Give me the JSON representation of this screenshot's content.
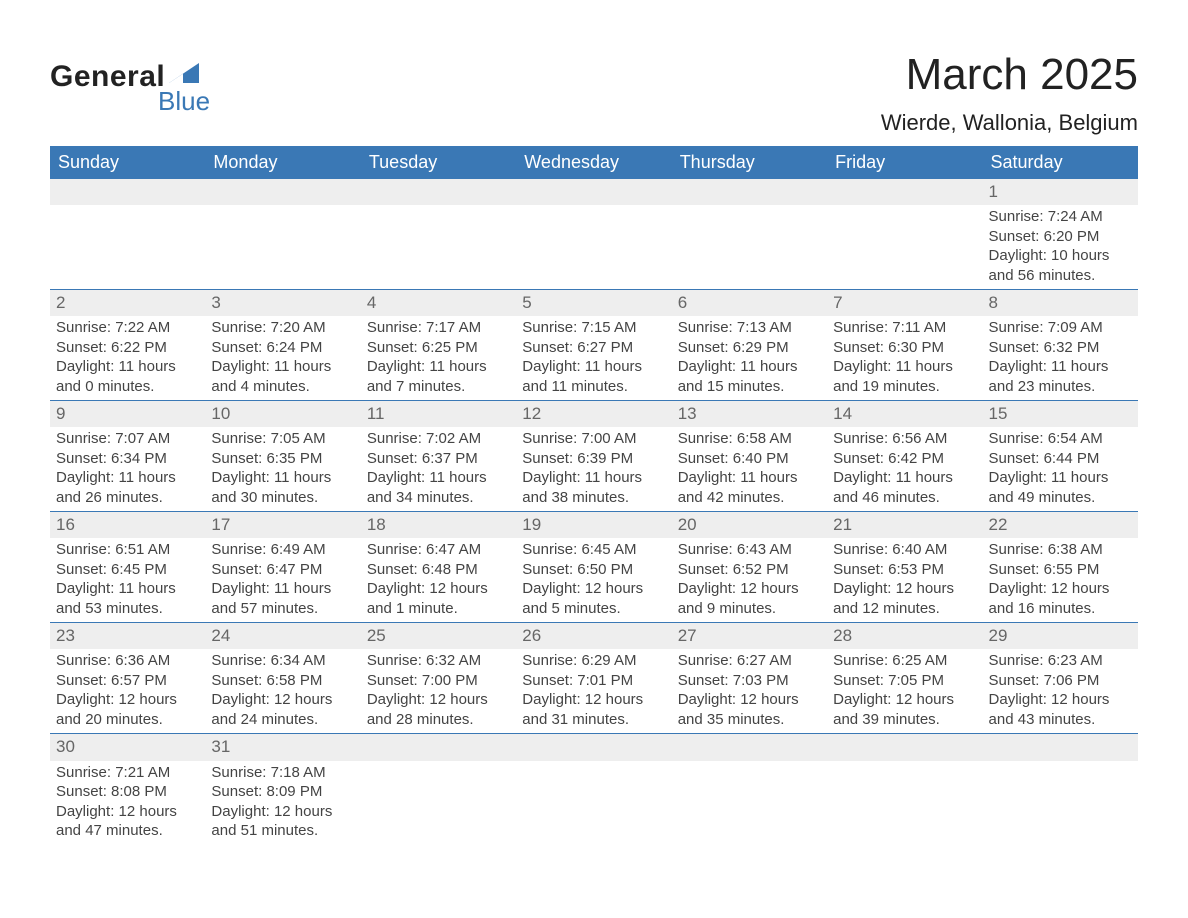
{
  "brand": {
    "name_main": "General",
    "name_sub": "Blue",
    "primary_color": "#3a78b5"
  },
  "title": "March 2025",
  "location": "Wierde, Wallonia, Belgium",
  "day_headers": [
    "Sunday",
    "Monday",
    "Tuesday",
    "Wednesday",
    "Thursday",
    "Friday",
    "Saturday"
  ],
  "colors": {
    "header_bg": "#3a78b5",
    "header_text": "#ffffff",
    "daynum_bg": "#eeeeee",
    "daynum_text": "#666666",
    "body_text": "#444444",
    "rule": "#3a78b5",
    "page_bg": "#ffffff"
  },
  "typography": {
    "title_fontsize": 44,
    "location_fontsize": 22,
    "header_fontsize": 18,
    "daynum_fontsize": 17,
    "cell_fontsize": 15
  },
  "grid": {
    "columns": 7,
    "rows": 6,
    "start_day_index": 6
  },
  "days": [
    {
      "n": 1,
      "sunrise": "7:24 AM",
      "sunset": "6:20 PM",
      "daylight": "10 hours and 56 minutes."
    },
    {
      "n": 2,
      "sunrise": "7:22 AM",
      "sunset": "6:22 PM",
      "daylight": "11 hours and 0 minutes."
    },
    {
      "n": 3,
      "sunrise": "7:20 AM",
      "sunset": "6:24 PM",
      "daylight": "11 hours and 4 minutes."
    },
    {
      "n": 4,
      "sunrise": "7:17 AM",
      "sunset": "6:25 PM",
      "daylight": "11 hours and 7 minutes."
    },
    {
      "n": 5,
      "sunrise": "7:15 AM",
      "sunset": "6:27 PM",
      "daylight": "11 hours and 11 minutes."
    },
    {
      "n": 6,
      "sunrise": "7:13 AM",
      "sunset": "6:29 PM",
      "daylight": "11 hours and 15 minutes."
    },
    {
      "n": 7,
      "sunrise": "7:11 AM",
      "sunset": "6:30 PM",
      "daylight": "11 hours and 19 minutes."
    },
    {
      "n": 8,
      "sunrise": "7:09 AM",
      "sunset": "6:32 PM",
      "daylight": "11 hours and 23 minutes."
    },
    {
      "n": 9,
      "sunrise": "7:07 AM",
      "sunset": "6:34 PM",
      "daylight": "11 hours and 26 minutes."
    },
    {
      "n": 10,
      "sunrise": "7:05 AM",
      "sunset": "6:35 PM",
      "daylight": "11 hours and 30 minutes."
    },
    {
      "n": 11,
      "sunrise": "7:02 AM",
      "sunset": "6:37 PM",
      "daylight": "11 hours and 34 minutes."
    },
    {
      "n": 12,
      "sunrise": "7:00 AM",
      "sunset": "6:39 PM",
      "daylight": "11 hours and 38 minutes."
    },
    {
      "n": 13,
      "sunrise": "6:58 AM",
      "sunset": "6:40 PM",
      "daylight": "11 hours and 42 minutes."
    },
    {
      "n": 14,
      "sunrise": "6:56 AM",
      "sunset": "6:42 PM",
      "daylight": "11 hours and 46 minutes."
    },
    {
      "n": 15,
      "sunrise": "6:54 AM",
      "sunset": "6:44 PM",
      "daylight": "11 hours and 49 minutes."
    },
    {
      "n": 16,
      "sunrise": "6:51 AM",
      "sunset": "6:45 PM",
      "daylight": "11 hours and 53 minutes."
    },
    {
      "n": 17,
      "sunrise": "6:49 AM",
      "sunset": "6:47 PM",
      "daylight": "11 hours and 57 minutes."
    },
    {
      "n": 18,
      "sunrise": "6:47 AM",
      "sunset": "6:48 PM",
      "daylight": "12 hours and 1 minute."
    },
    {
      "n": 19,
      "sunrise": "6:45 AM",
      "sunset": "6:50 PM",
      "daylight": "12 hours and 5 minutes."
    },
    {
      "n": 20,
      "sunrise": "6:43 AM",
      "sunset": "6:52 PM",
      "daylight": "12 hours and 9 minutes."
    },
    {
      "n": 21,
      "sunrise": "6:40 AM",
      "sunset": "6:53 PM",
      "daylight": "12 hours and 12 minutes."
    },
    {
      "n": 22,
      "sunrise": "6:38 AM",
      "sunset": "6:55 PM",
      "daylight": "12 hours and 16 minutes."
    },
    {
      "n": 23,
      "sunrise": "6:36 AM",
      "sunset": "6:57 PM",
      "daylight": "12 hours and 20 minutes."
    },
    {
      "n": 24,
      "sunrise": "6:34 AM",
      "sunset": "6:58 PM",
      "daylight": "12 hours and 24 minutes."
    },
    {
      "n": 25,
      "sunrise": "6:32 AM",
      "sunset": "7:00 PM",
      "daylight": "12 hours and 28 minutes."
    },
    {
      "n": 26,
      "sunrise": "6:29 AM",
      "sunset": "7:01 PM",
      "daylight": "12 hours and 31 minutes."
    },
    {
      "n": 27,
      "sunrise": "6:27 AM",
      "sunset": "7:03 PM",
      "daylight": "12 hours and 35 minutes."
    },
    {
      "n": 28,
      "sunrise": "6:25 AM",
      "sunset": "7:05 PM",
      "daylight": "12 hours and 39 minutes."
    },
    {
      "n": 29,
      "sunrise": "6:23 AM",
      "sunset": "7:06 PM",
      "daylight": "12 hours and 43 minutes."
    },
    {
      "n": 30,
      "sunrise": "7:21 AM",
      "sunset": "8:08 PM",
      "daylight": "12 hours and 47 minutes."
    },
    {
      "n": 31,
      "sunrise": "7:18 AM",
      "sunset": "8:09 PM",
      "daylight": "12 hours and 51 minutes."
    }
  ],
  "labels": {
    "sunrise": "Sunrise: ",
    "sunset": "Sunset: ",
    "daylight": "Daylight: "
  }
}
